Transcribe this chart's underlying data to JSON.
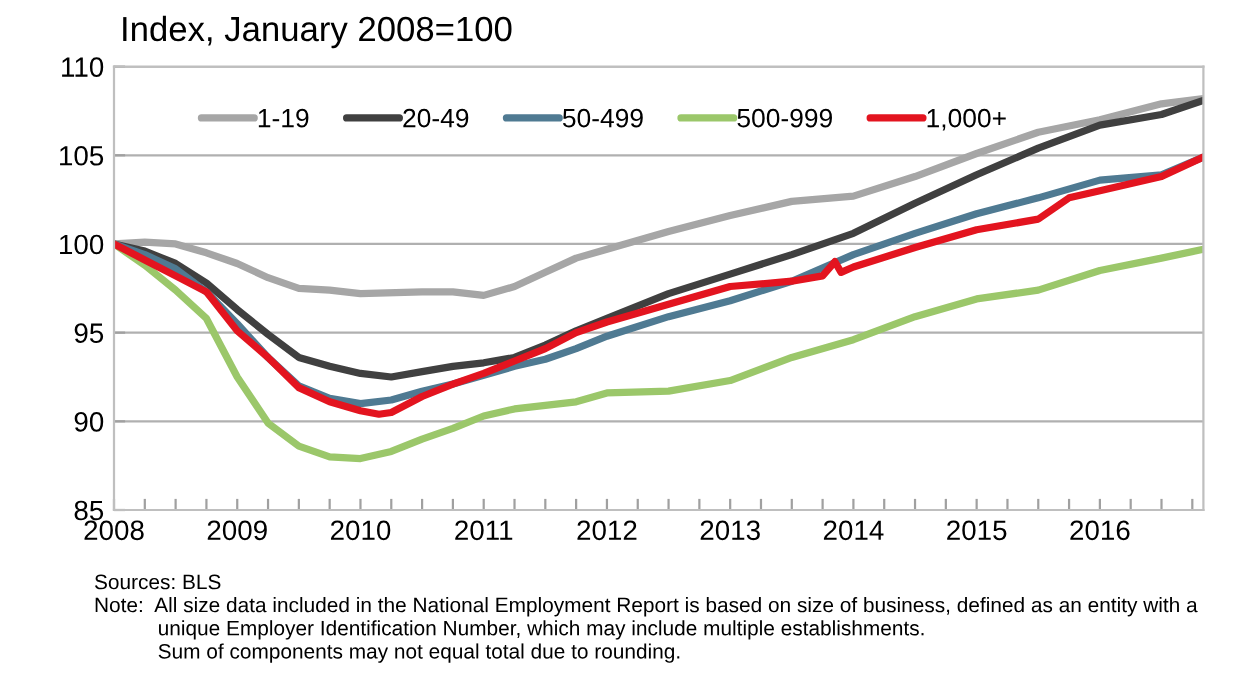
{
  "chart_data": {
    "type": "line",
    "title": "Index, January 2008=100",
    "xlim": [
      2008,
      2016.84
    ],
    "ylim": [
      85,
      110
    ],
    "yticks": [
      85,
      90,
      95,
      100,
      105,
      110
    ],
    "xticks": [
      2008,
      {
        "value": 2008.25,
        "label": null
      },
      {
        "value": 2008.5,
        "label": null
      },
      {
        "value": 2008.75,
        "label": null
      },
      2009,
      {
        "value": 2009.25,
        "label": null
      },
      {
        "value": 2009.5,
        "label": null
      },
      {
        "value": 2009.75,
        "label": null
      },
      2010,
      {
        "value": 2010.25,
        "label": null
      },
      {
        "value": 2010.5,
        "label": null
      },
      {
        "value": 2010.75,
        "label": null
      },
      2011,
      {
        "value": 2011.25,
        "label": null
      },
      {
        "value": 2011.5,
        "label": null
      },
      {
        "value": 2011.75,
        "label": null
      },
      2012,
      {
        "value": 2012.25,
        "label": null
      },
      {
        "value": 2012.5,
        "label": null
      },
      {
        "value": 2012.75,
        "label": null
      },
      2013,
      {
        "value": 2013.25,
        "label": null
      },
      {
        "value": 2013.5,
        "label": null
      },
      {
        "value": 2013.75,
        "label": null
      },
      2014,
      {
        "value": 2014.25,
        "label": null
      },
      {
        "value": 2014.5,
        "label": null
      },
      {
        "value": 2014.75,
        "label": null
      },
      2015,
      {
        "value": 2015.25,
        "label": null
      },
      {
        "value": 2015.5,
        "label": null
      },
      {
        "value": 2015.75,
        "label": null
      },
      2016,
      {
        "value": 2016.25,
        "label": null
      },
      {
        "value": 2016.5,
        "label": null
      },
      {
        "value": 2016.75,
        "label": null
      }
    ],
    "grid": "y",
    "legend": "top",
    "line_style": "solid",
    "series": [
      {
        "name": "1-19",
        "color": "#a6a6a6",
        "x": [
          2008,
          2008.25,
          2008.5,
          2008.75,
          2009,
          2009.25,
          2009.5,
          2009.75,
          2010,
          2010.5,
          2010.75,
          2011,
          2011.25,
          2011.5,
          2011.75,
          2012,
          2012.5,
          2013,
          2013.5,
          2014,
          2014.5,
          2015,
          2015.5,
          2016,
          2016.5,
          2016.84
        ],
        "values": [
          100,
          100.1,
          100,
          99.5,
          98.9,
          98.1,
          97.5,
          97.4,
          97.2,
          97.3,
          97.3,
          97.1,
          97.6,
          98.4,
          99.2,
          99.7,
          100.7,
          101.6,
          102.4,
          102.7,
          103.8,
          105.1,
          106.3,
          107.0,
          107.9,
          108.2
        ]
      },
      {
        "name": "20-49",
        "color": "#404040",
        "x": [
          2008,
          2008.25,
          2008.5,
          2008.75,
          2009,
          2009.25,
          2009.5,
          2009.75,
          2010,
          2010.25,
          2010.5,
          2010.75,
          2011,
          2011.25,
          2011.5,
          2011.75,
          2012,
          2012.5,
          2013,
          2013.5,
          2014,
          2014.5,
          2015,
          2015.5,
          2016,
          2016.5,
          2016.84
        ],
        "values": [
          100,
          99.6,
          98.9,
          97.8,
          96.3,
          94.9,
          93.6,
          93.1,
          92.7,
          92.5,
          92.8,
          93.1,
          93.3,
          93.6,
          94.3,
          95.1,
          95.8,
          97.2,
          98.3,
          99.4,
          100.6,
          102.3,
          103.9,
          105.4,
          106.7,
          107.3,
          108.1
        ]
      },
      {
        "name": "50-499",
        "color": "#4f7a92",
        "x": [
          2008,
          2008.25,
          2008.5,
          2008.75,
          2009,
          2009.25,
          2009.5,
          2009.75,
          2010,
          2010.25,
          2010.5,
          2010.75,
          2011,
          2011.25,
          2011.5,
          2011.75,
          2012,
          2012.5,
          2013,
          2013.5,
          2014,
          2014.5,
          2015,
          2015.5,
          2016,
          2016.5,
          2016.84
        ],
        "values": [
          100,
          99.4,
          98.6,
          97.3,
          95.5,
          93.6,
          92.0,
          91.3,
          91.0,
          91.2,
          91.7,
          92.1,
          92.6,
          93.1,
          93.5,
          94.1,
          94.8,
          95.9,
          96.8,
          97.9,
          99.4,
          100.6,
          101.7,
          102.6,
          103.6,
          103.9,
          104.9
        ]
      },
      {
        "name": "500-999",
        "color": "#9bc76a",
        "x": [
          2008,
          2008.25,
          2008.5,
          2008.75,
          2009,
          2009.25,
          2009.5,
          2009.75,
          2010,
          2010.25,
          2010.5,
          2010.75,
          2011,
          2011.25,
          2011.5,
          2011.75,
          2012,
          2012.5,
          2013,
          2013.5,
          2014,
          2014.5,
          2015,
          2015.5,
          2016,
          2016.5,
          2016.84
        ],
        "values": [
          100,
          98.8,
          97.4,
          95.8,
          92.5,
          89.9,
          88.6,
          88.0,
          87.9,
          88.3,
          89.0,
          89.6,
          90.3,
          90.7,
          90.9,
          91.1,
          91.6,
          91.7,
          92.3,
          93.6,
          94.6,
          95.9,
          96.9,
          97.4,
          98.5,
          99.2,
          99.7
        ]
      },
      {
        "name": "1,000+",
        "color": "#e3141f",
        "x": [
          2008,
          2008.25,
          2008.5,
          2008.75,
          2009,
          2009.25,
          2009.5,
          2009.75,
          2010,
          2010.15,
          2010.25,
          2010.5,
          2010.75,
          2011,
          2011.25,
          2011.5,
          2011.75,
          2012,
          2012.5,
          2013,
          2013.5,
          2013.75,
          2013.85,
          2013.9,
          2014,
          2014.5,
          2015,
          2015.5,
          2015.75,
          2016,
          2016.5,
          2016.84
        ],
        "values": [
          100,
          99.1,
          98.2,
          97.3,
          95.1,
          93.6,
          91.9,
          91.1,
          90.6,
          90.4,
          90.5,
          91.4,
          92.1,
          92.7,
          93.4,
          94.1,
          95.0,
          95.6,
          96.6,
          97.6,
          97.9,
          98.2,
          99.0,
          98.4,
          98.7,
          99.8,
          100.8,
          101.4,
          102.6,
          103.0,
          103.8,
          104.9
        ]
      }
    ],
    "annotations": [
      "Sources: BLS",
      "Note:  All size data included in the National Employment Report is based on size of business, defined as an entity with a\n           unique Employer Identification Number, which may include multiple establishments.\n           Sum of components may not equal total due to rounding."
    ]
  }
}
